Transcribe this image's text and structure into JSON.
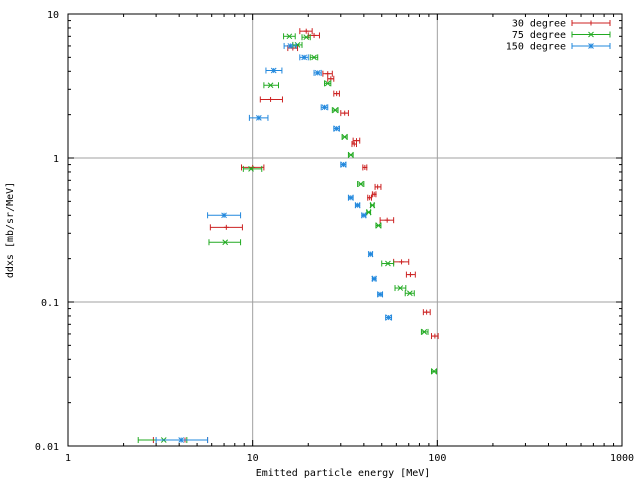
{
  "chart_data": {
    "type": "scatter",
    "xlabel": "Emitted particle energy [MeV]",
    "ylabel": "ddxs [mb/sr/MeV]",
    "xscale": "log",
    "yscale": "log",
    "xlim": [
      1,
      1000
    ],
    "ylim": [
      0.01,
      10
    ],
    "grid": true,
    "legend_position": "top-right",
    "x_tick_labels": [
      "1",
      "10",
      "100",
      "1000"
    ],
    "y_tick_labels": [
      "0.01",
      "0.1",
      "1",
      "10"
    ],
    "series": [
      {
        "name": "30 degree",
        "color": "#cc2222",
        "marker": "plus",
        "points": [
          {
            "x": 19.5,
            "y": 7.6,
            "xerr": [
              18.0,
              21.0
            ]
          },
          {
            "x": 21.5,
            "y": 7.1,
            "xerr": [
              20.0,
              23.0
            ]
          },
          {
            "x": 16.5,
            "y": 5.8,
            "xerr": [
              15.5,
              17.5
            ]
          },
          {
            "x": 25.5,
            "y": 3.85,
            "xerr": [
              24.0,
              27.0
            ]
          },
          {
            "x": 26.5,
            "y": 3.55,
            "xerr": [
              25.5,
              27.5
            ]
          },
          {
            "x": 28.5,
            "y": 2.8,
            "xerr": [
              27.5,
              29.5
            ]
          },
          {
            "x": 12.5,
            "y": 2.55,
            "xerr": [
              11.0,
              14.5
            ]
          },
          {
            "x": 31.5,
            "y": 2.05,
            "xerr": [
              30.0,
              33.0
            ]
          },
          {
            "x": 36.5,
            "y": 1.32,
            "xerr": [
              35.0,
              38.0
            ]
          },
          {
            "x": 35.5,
            "y": 1.25,
            "xerr": [
              34.5,
              36.5
            ]
          },
          {
            "x": 10.0,
            "y": 0.86,
            "xerr": [
              8.7,
              11.5
            ]
          },
          {
            "x": 40.5,
            "y": 0.86,
            "xerr": [
              39.5,
              41.5
            ]
          },
          {
            "x": 47.5,
            "y": 0.63,
            "xerr": [
              46.0,
              49.5
            ]
          },
          {
            "x": 45.5,
            "y": 0.56,
            "xerr": [
              44.5,
              46.5
            ]
          },
          {
            "x": 43.0,
            "y": 0.53,
            "xerr": [
              42.0,
              44.0
            ]
          },
          {
            "x": 53.5,
            "y": 0.37,
            "xerr": [
              49.0,
              58.0
            ]
          },
          {
            "x": 7.2,
            "y": 0.33,
            "xerr": [
              5.9,
              8.8
            ]
          },
          {
            "x": 64.0,
            "y": 0.19,
            "xerr": [
              58.0,
              70.0
            ]
          },
          {
            "x": 71.5,
            "y": 0.155,
            "xerr": [
              68.0,
              76.0
            ]
          },
          {
            "x": 87.5,
            "y": 0.085,
            "xerr": [
              84.0,
              91.5
            ]
          },
          {
            "x": 97.0,
            "y": 0.058,
            "xerr": [
              93.0,
              101.0
            ]
          },
          {
            "x": 4.3,
            "y": 0.011,
            "xerr": [
              2.9,
              5.7
            ]
          }
        ]
      },
      {
        "name": "75 degree",
        "color": "#22aa22",
        "marker": "cross",
        "points": [
          {
            "x": 15.8,
            "y": 7.0,
            "xerr": [
              14.7,
              17.0
            ]
          },
          {
            "x": 19.5,
            "y": 6.9,
            "xerr": [
              18.5,
              20.5
            ]
          },
          {
            "x": 17.5,
            "y": 6.1,
            "xerr": [
              16.5,
              18.5
            ]
          },
          {
            "x": 21.5,
            "y": 5.0,
            "xerr": [
              20.5,
              22.5
            ]
          },
          {
            "x": 25.5,
            "y": 3.3,
            "xerr": [
              24.5,
              26.5
            ]
          },
          {
            "x": 12.5,
            "y": 3.2,
            "xerr": [
              11.5,
              13.8
            ]
          },
          {
            "x": 28.0,
            "y": 2.15,
            "xerr": [
              27.0,
              29.0
            ]
          },
          {
            "x": 31.5,
            "y": 1.4,
            "xerr": [
              30.5,
              32.5
            ]
          },
          {
            "x": 34.0,
            "y": 1.05,
            "xerr": [
              33.0,
              35.0
            ]
          },
          {
            "x": 9.8,
            "y": 0.84,
            "xerr": [
              8.9,
              11.2
            ]
          },
          {
            "x": 38.5,
            "y": 0.66,
            "xerr": [
              37.0,
              40.0
            ]
          },
          {
            "x": 44.5,
            "y": 0.47,
            "xerr": [
              43.5,
              45.5
            ]
          },
          {
            "x": 42.5,
            "y": 0.42,
            "xerr": [
              41.5,
              43.5
            ]
          },
          {
            "x": 48.0,
            "y": 0.34,
            "xerr": [
              46.5,
              49.5
            ]
          },
          {
            "x": 7.1,
            "y": 0.26,
            "xerr": [
              5.8,
              8.6
            ]
          },
          {
            "x": 54.0,
            "y": 0.185,
            "xerr": [
              50.0,
              58.0
            ]
          },
          {
            "x": 63.0,
            "y": 0.125,
            "xerr": [
              59.0,
              67.5
            ]
          },
          {
            "x": 71.0,
            "y": 0.115,
            "xerr": [
              67.0,
              75.0
            ]
          },
          {
            "x": 85.0,
            "y": 0.062,
            "xerr": [
              82.0,
              89.0
            ]
          },
          {
            "x": 96.0,
            "y": 0.033,
            "xerr": [
              93.0,
              99.0
            ]
          },
          {
            "x": 3.3,
            "y": 0.011,
            "xerr": [
              2.4,
              4.4
            ]
          }
        ]
      },
      {
        "name": "150 degree",
        "color": "#2288dd",
        "marker": "star",
        "points": [
          {
            "x": 16.0,
            "y": 6.0,
            "xerr": [
              14.8,
              17.2
            ]
          },
          {
            "x": 19.0,
            "y": 5.0,
            "xerr": [
              18.0,
              20.0
            ]
          },
          {
            "x": 13.0,
            "y": 4.05,
            "xerr": [
              11.8,
              14.4
            ]
          },
          {
            "x": 22.5,
            "y": 3.9,
            "xerr": [
              21.5,
              23.5
            ]
          },
          {
            "x": 24.5,
            "y": 2.25,
            "xerr": [
              23.5,
              25.5
            ]
          },
          {
            "x": 10.8,
            "y": 1.9,
            "xerr": [
              9.6,
              12.1
            ]
          },
          {
            "x": 28.5,
            "y": 1.6,
            "xerr": [
              27.5,
              29.5
            ]
          },
          {
            "x": 31.0,
            "y": 0.9,
            "xerr": [
              30.0,
              32.0
            ]
          },
          {
            "x": 34.0,
            "y": 0.53,
            "xerr": [
              33.0,
              35.0
            ]
          },
          {
            "x": 37.0,
            "y": 0.47,
            "xerr": [
              36.0,
              38.0
            ]
          },
          {
            "x": 40.0,
            "y": 0.4,
            "xerr": [
              39.0,
              41.0
            ]
          },
          {
            "x": 7.0,
            "y": 0.4,
            "xerr": [
              5.7,
              8.6
            ]
          },
          {
            "x": 43.5,
            "y": 0.215,
            "xerr": [
              42.5,
              44.5
            ]
          },
          {
            "x": 45.5,
            "y": 0.145,
            "xerr": [
              44.5,
              46.5
            ]
          },
          {
            "x": 49.0,
            "y": 0.113,
            "xerr": [
              47.5,
              50.5
            ]
          },
          {
            "x": 54.5,
            "y": 0.078,
            "xerr": [
              52.5,
              56.5
            ]
          },
          {
            "x": 4.1,
            "y": 0.011,
            "xerr": [
              3.0,
              5.7
            ]
          }
        ]
      }
    ]
  }
}
